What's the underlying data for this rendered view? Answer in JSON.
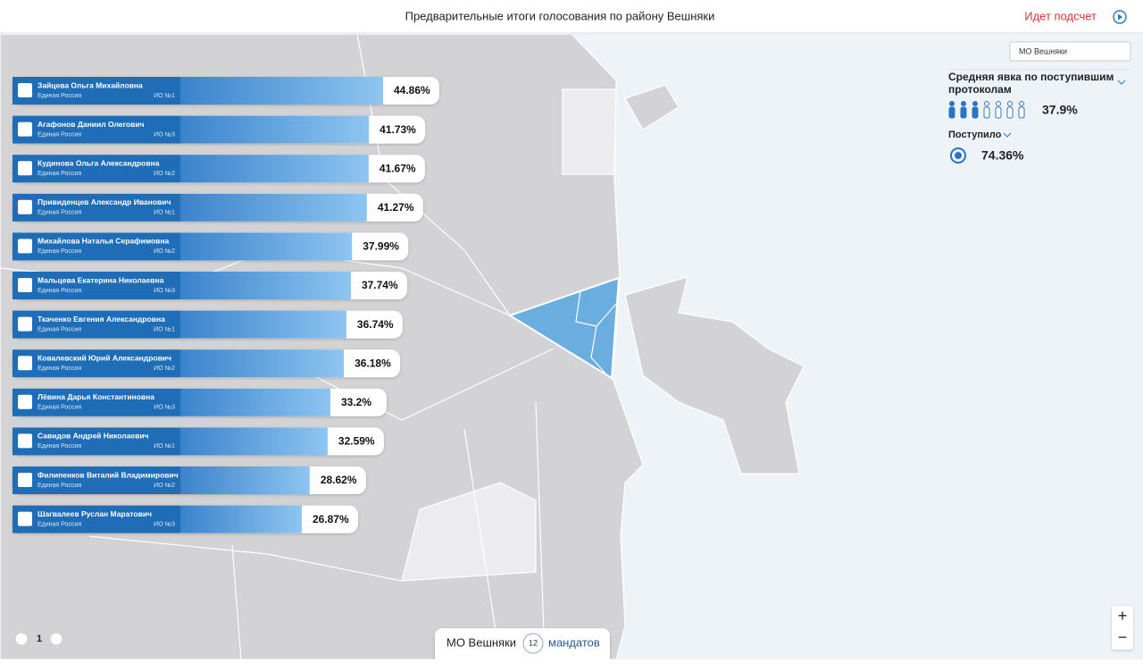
{
  "header": {
    "title": "Предварительные итоги голосования по району Вешняки",
    "status": "Идет подсчет"
  },
  "district_select": "МО Вешняки",
  "candidates": [
    {
      "name": "Зайцева Ольга Михайловна",
      "party": "Единая Россия",
      "district": "ИО №1",
      "percent": 44.86,
      "percent_label": "44.86%"
    },
    {
      "name": "Агафонов Даниил Олегович",
      "party": "Единая Россия",
      "district": "ИО №3",
      "percent": 41.73,
      "percent_label": "41.73%"
    },
    {
      "name": "Кудинова Ольга Александровна",
      "party": "Единая Россия",
      "district": "ИО №2",
      "percent": 41.67,
      "percent_label": "41.67%"
    },
    {
      "name": "Привиденцев Александр Иванович",
      "party": "Единая Россия",
      "district": "ИО №1",
      "percent": 41.27,
      "percent_label": "41.27%"
    },
    {
      "name": "Михайлова Наталья Серафимовна",
      "party": "Единая Россия",
      "district": "ИО №2",
      "percent": 37.99,
      "percent_label": "37.99%"
    },
    {
      "name": "Мальцева Екатерина Николаевна",
      "party": "Единая Россия",
      "district": "ИО №3",
      "percent": 37.74,
      "percent_label": "37.74%"
    },
    {
      "name": "Ткаченко Евгения Александровна",
      "party": "Единая Россия",
      "district": "ИО №1",
      "percent": 36.74,
      "percent_label": "36.74%"
    },
    {
      "name": "Ковалевский Юрий Александрович",
      "party": "Единая Россия",
      "district": "ИО №2",
      "percent": 36.18,
      "percent_label": "36.18%"
    },
    {
      "name": "Лёвина Дарья Константиновна",
      "party": "Единая Россия",
      "district": "ИО №3",
      "percent": 33.2,
      "percent_label": "33.2%"
    },
    {
      "name": "Савидов Андрей Николаевич",
      "party": "Единая Россия",
      "district": "ИО №1",
      "percent": 32.59,
      "percent_label": "32.59%"
    },
    {
      "name": "Филипенков Виталий Владимирович",
      "party": "Единая Россия",
      "district": "ИО №2",
      "percent": 28.62,
      "percent_label": "28.62%"
    },
    {
      "name": "Шагвалеев Руслан Маратович",
      "party": "Единая Россия",
      "district": "ИО №3",
      "percent": 26.87,
      "percent_label": "26.87%"
    }
  ],
  "turnout": {
    "label": "Средняя явка по поступившим",
    "label_line2": "протоколам",
    "value_label": "37.9%"
  },
  "received": {
    "label": "Поступило",
    "value_label": "74.36%"
  },
  "pager": {
    "page": "1"
  },
  "footer": {
    "district": "МО Вешняки",
    "mandates": "12",
    "mandates_label": "мандатов"
  },
  "zoom": {
    "in": "+",
    "out": "−"
  }
}
